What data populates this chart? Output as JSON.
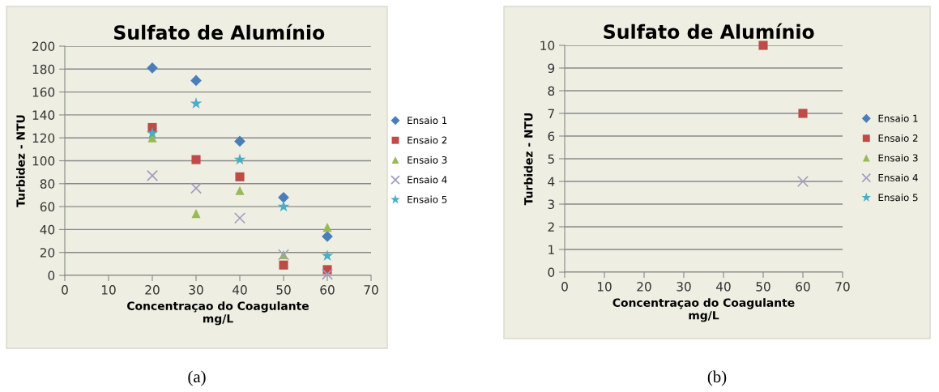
{
  "chart_data": [
    {
      "type": "scatter",
      "title": "Sulfato de Alumínio",
      "xlabel": "Concentraçao do Coagulante\nmg/L",
      "ylabel": "Turbidez - NTU",
      "x": [
        20,
        30,
        40,
        50,
        60
      ],
      "xlim": [
        0,
        70
      ],
      "xticks": [
        0,
        10,
        20,
        30,
        40,
        50,
        60,
        70
      ],
      "ylim": [
        0,
        200
      ],
      "yticks": [
        0,
        20,
        40,
        60,
        80,
        100,
        120,
        140,
        160,
        180,
        200
      ],
      "grid": "y",
      "legend": "right",
      "annotations": [
        "(a)"
      ],
      "series": [
        {
          "name": "Ensaio 1",
          "color": "#4a7ebb",
          "marker": "diamond",
          "values": [
            181,
            170,
            117,
            68,
            34
          ]
        },
        {
          "name": "Ensaio 2",
          "color": "#be4b48",
          "marker": "square",
          "values": [
            129,
            101,
            86,
            9,
            5
          ]
        },
        {
          "name": "Ensaio 3",
          "color": "#98b954",
          "marker": "triangle",
          "values": [
            120,
            54,
            74,
            18,
            42
          ]
        },
        {
          "name": "Ensaio 4",
          "color": "#a09cc0",
          "marker": "cross",
          "values": [
            87,
            76,
            50,
            18,
            1
          ]
        },
        {
          "name": "Ensaio 5",
          "color": "#4bacc6",
          "marker": "star",
          "values": [
            124,
            150,
            101,
            60,
            17
          ]
        }
      ]
    },
    {
      "type": "scatter",
      "title": "Sulfato de Alumínio",
      "xlabel": "Concentraçao do Coagulante\nmg/L",
      "ylabel": "Turbidez - NTU",
      "x": [
        50,
        60
      ],
      "xlim": [
        0,
        70
      ],
      "xticks": [
        0,
        10,
        20,
        30,
        40,
        50,
        60,
        70
      ],
      "ylim": [
        0,
        10
      ],
      "yticks": [
        0,
        1,
        2,
        3,
        4,
        5,
        6,
        7,
        8,
        9,
        10
      ],
      "grid": "y",
      "legend": "right",
      "annotations": [
        "(b)"
      ],
      "series": [
        {
          "name": "Ensaio 1",
          "color": "#4a7ebb",
          "marker": "diamond",
          "values": [
            null,
            null
          ]
        },
        {
          "name": "Ensaio 2",
          "color": "#be4b48",
          "marker": "square",
          "values": [
            10,
            7
          ]
        },
        {
          "name": "Ensaio 3",
          "color": "#98b954",
          "marker": "triangle",
          "values": [
            null,
            null
          ]
        },
        {
          "name": "Ensaio 4",
          "color": "#a09cc0",
          "marker": "cross",
          "values": [
            null,
            4
          ]
        },
        {
          "name": "Ensaio 5",
          "color": "#4bacc6",
          "marker": "star",
          "values": [
            null,
            null
          ]
        }
      ]
    }
  ]
}
